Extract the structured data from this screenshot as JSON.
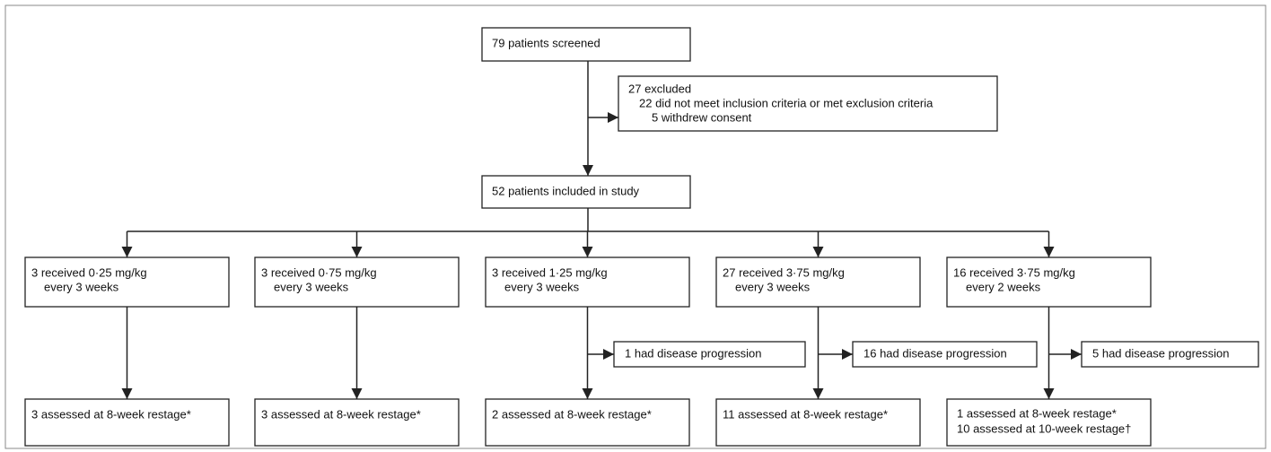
{
  "screened": {
    "text": "79 patients screened"
  },
  "excluded": {
    "lines": [
      "27 excluded",
      "22 did not meet inclusion criteria or met exclusion criteria",
      "5 withdrew consent"
    ]
  },
  "included": {
    "text": "52 patients included in study"
  },
  "arms": [
    {
      "lines": [
        "3 received 0·25 mg/kg",
        "every 3 weeks"
      ],
      "assessed": [
        "3 assessed at 8-week restage*"
      ]
    },
    {
      "lines": [
        "3 received 0·75 mg/kg",
        "every 3 weeks"
      ],
      "assessed": [
        "3 assessed at 8-week restage*"
      ]
    },
    {
      "lines": [
        "3 received 1·25 mg/kg",
        "every 3 weeks"
      ],
      "progression": "1 had disease progression",
      "assessed": [
        "2 assessed at 8-week restage*"
      ]
    },
    {
      "lines": [
        "27 received 3·75 mg/kg",
        "every 3 weeks"
      ],
      "progression": "16 had disease progression",
      "assessed": [
        "11 assessed at 8-week restage*"
      ]
    },
    {
      "lines": [
        "16 received 3·75 mg/kg",
        "every 2 weeks"
      ],
      "progression": "5 had disease progression",
      "assessed": [
        "1 assessed at 8-week restage*",
        "10 assessed at 10-week restage†"
      ]
    }
  ]
}
